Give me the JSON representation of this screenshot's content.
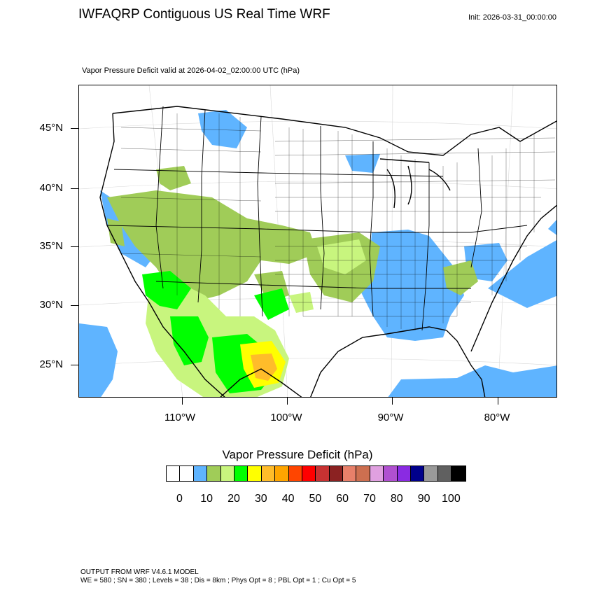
{
  "header": {
    "title": "IWFAQRP Contiguous US Real Time WRF",
    "init": "Init: 2026-03-31_00:00:00",
    "subtitle": "Vapor Pressure Deficit valid at 2026-04-02_02:00:00 UTC   (hPa)"
  },
  "map": {
    "lat_labels": [
      "45°N",
      "40°N",
      "35°N",
      "30°N",
      "25°N"
    ],
    "lon_labels": [
      "110°W",
      "100°W",
      "90°W",
      "80°W"
    ],
    "colors": {
      "water": "#5fb4ff",
      "light_green": "#a0cc58",
      "lime": "#c8f57e",
      "green": "#00ff00",
      "yellow": "#ffff00",
      "orange": "#ffbc2a"
    }
  },
  "colorbar": {
    "title": "Vapor Pressure Deficit  (hPa)",
    "colors": [
      "#ffffff",
      "#ffffff",
      "#5fb4ff",
      "#a0cc58",
      "#c8f57e",
      "#00ff00",
      "#ffff00",
      "#ffbc2a",
      "#ffa500",
      "#ff4500",
      "#ff0000",
      "#c83232",
      "#8b2222",
      "#e8806a",
      "#cd6f50",
      "#e0a0e0",
      "#b050d0",
      "#8a2be2",
      "#00008b",
      "#999999",
      "#606060",
      "#000000"
    ],
    "labels": [
      "0",
      "10",
      "20",
      "30",
      "40",
      "50",
      "60",
      "70",
      "80",
      "90",
      "100"
    ]
  },
  "footer": {
    "line1": "OUTPUT FROM WRF V4.6.1 MODEL",
    "line2": "WE = 580 ; SN = 380 ; Levels = 38 ; Dis = 8km ; Phys Opt = 8 ; PBL Opt = 1 ; Cu Opt = 5"
  }
}
